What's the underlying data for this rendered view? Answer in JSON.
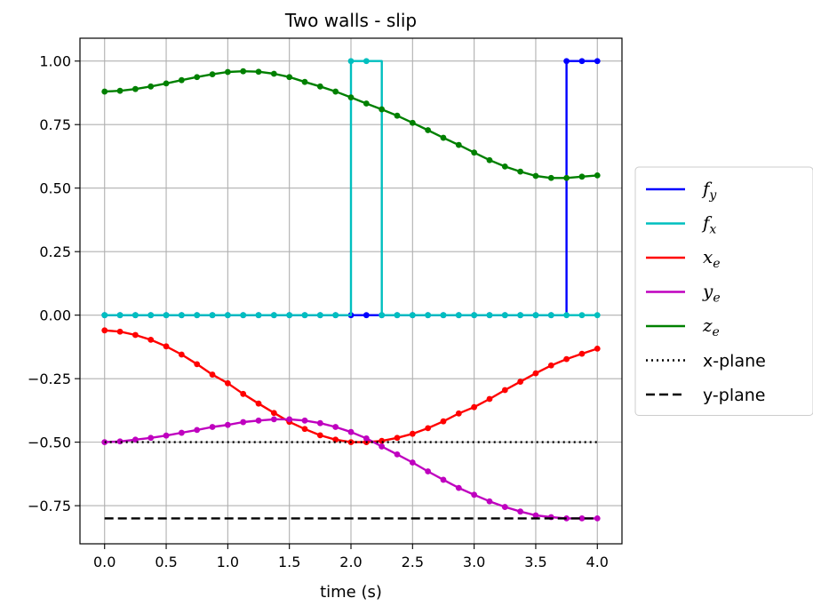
{
  "chart_data": {
    "type": "line",
    "title": "Two walls - slip",
    "xlabel": "time (s)",
    "ylabel": "",
    "xlim": [
      -0.2,
      4.2
    ],
    "ylim": [
      -0.9,
      1.09
    ],
    "xticks": [
      0.0,
      0.5,
      1.0,
      1.5,
      2.0,
      2.5,
      3.0,
      3.5,
      4.0
    ],
    "xtick_labels": [
      "0.0",
      "0.5",
      "1.0",
      "1.5",
      "2.0",
      "2.5",
      "3.0",
      "3.5",
      "4.0"
    ],
    "yticks": [
      -0.75,
      -0.5,
      -0.25,
      0.0,
      0.25,
      0.5,
      0.75,
      1.0
    ],
    "ytick_labels": [
      "−0.75",
      "−0.50",
      "−0.25",
      "0.00",
      "0.25",
      "0.50",
      "0.75",
      "1.00"
    ],
    "grid": true,
    "legend_position": "right-outside",
    "series": [
      {
        "name": "f_y",
        "label_main": "f",
        "label_sub": "y",
        "color": "#0000ff",
        "linestyle": "solid",
        "marker": "circle",
        "drawstyle": "steps-post",
        "x": [
          0.0,
          0.125,
          0.25,
          0.375,
          0.5,
          0.625,
          0.75,
          0.875,
          1.0,
          1.125,
          1.25,
          1.375,
          1.5,
          1.625,
          1.75,
          1.875,
          2.0,
          2.125,
          2.25,
          2.375,
          2.5,
          2.625,
          2.75,
          2.875,
          3.0,
          3.125,
          3.25,
          3.375,
          3.5,
          3.625,
          3.75,
          3.875,
          4.0
        ],
        "y": [
          0,
          0,
          0,
          0,
          0,
          0,
          0,
          0,
          0,
          0,
          0,
          0,
          0,
          0,
          0,
          0,
          0,
          0,
          0,
          0,
          0,
          0,
          0,
          0,
          0,
          0,
          0,
          0,
          0,
          0,
          1,
          1,
          1
        ]
      },
      {
        "name": "f_x",
        "label_main": "f",
        "label_sub": "x",
        "color": "#00bfbf",
        "linestyle": "solid",
        "marker": "circle",
        "drawstyle": "steps-post",
        "x": [
          0.0,
          0.125,
          0.25,
          0.375,
          0.5,
          0.625,
          0.75,
          0.875,
          1.0,
          1.125,
          1.25,
          1.375,
          1.5,
          1.625,
          1.75,
          1.875,
          2.0,
          2.125,
          2.25,
          2.375,
          2.5,
          2.625,
          2.75,
          2.875,
          3.0,
          3.125,
          3.25,
          3.375,
          3.5,
          3.625,
          3.75,
          3.875,
          4.0
        ],
        "y": [
          0,
          0,
          0,
          0,
          0,
          0,
          0,
          0,
          0,
          0,
          0,
          0,
          0,
          0,
          0,
          0,
          1,
          1,
          0,
          0,
          0,
          0,
          0,
          0,
          0,
          0,
          0,
          0,
          0,
          0,
          0,
          0,
          0
        ]
      },
      {
        "name": "x_e",
        "label_main": "x",
        "label_sub": "e",
        "color": "#ff0000",
        "linestyle": "solid",
        "marker": "circle",
        "drawstyle": "default",
        "x": [
          0.0,
          0.125,
          0.25,
          0.375,
          0.5,
          0.625,
          0.75,
          0.875,
          1.0,
          1.125,
          1.25,
          1.375,
          1.5,
          1.625,
          1.75,
          1.875,
          2.0,
          2.125,
          2.25,
          2.375,
          2.5,
          2.625,
          2.75,
          2.875,
          3.0,
          3.125,
          3.25,
          3.375,
          3.5,
          3.625,
          3.75,
          3.875,
          4.0
        ],
        "y": [
          -0.06,
          -0.065,
          -0.078,
          -0.097,
          -0.123,
          -0.155,
          -0.193,
          -0.234,
          -0.268,
          -0.31,
          -0.348,
          -0.385,
          -0.42,
          -0.448,
          -0.473,
          -0.49,
          -0.5,
          -0.5,
          -0.495,
          -0.483,
          -0.467,
          -0.445,
          -0.418,
          -0.387,
          -0.362,
          -0.33,
          -0.295,
          -0.262,
          -0.229,
          -0.198,
          -0.173,
          -0.152,
          -0.132
        ]
      },
      {
        "name": "y_e",
        "label_main": "y",
        "label_sub": "e",
        "color": "#bf00bf",
        "linestyle": "solid",
        "marker": "circle",
        "drawstyle": "default",
        "x": [
          0.0,
          0.125,
          0.25,
          0.375,
          0.5,
          0.625,
          0.75,
          0.875,
          1.0,
          1.125,
          1.25,
          1.375,
          1.5,
          1.625,
          1.75,
          1.875,
          2.0,
          2.125,
          2.25,
          2.375,
          2.5,
          2.625,
          2.75,
          2.875,
          3.0,
          3.125,
          3.25,
          3.375,
          3.5,
          3.625,
          3.75,
          3.875,
          4.0
        ],
        "y": [
          -0.5,
          -0.497,
          -0.49,
          -0.483,
          -0.474,
          -0.463,
          -0.452,
          -0.44,
          -0.432,
          -0.421,
          -0.415,
          -0.41,
          -0.41,
          -0.415,
          -0.425,
          -0.44,
          -0.46,
          -0.485,
          -0.517,
          -0.548,
          -0.58,
          -0.615,
          -0.648,
          -0.68,
          -0.707,
          -0.733,
          -0.755,
          -0.773,
          -0.788,
          -0.795,
          -0.8,
          -0.8,
          -0.8
        ]
      },
      {
        "name": "z_e",
        "label_main": "z",
        "label_sub": "e",
        "color": "#008000",
        "linestyle": "solid",
        "marker": "circle",
        "drawstyle": "default",
        "x": [
          0.0,
          0.125,
          0.25,
          0.375,
          0.5,
          0.625,
          0.75,
          0.875,
          1.0,
          1.125,
          1.25,
          1.375,
          1.5,
          1.625,
          1.75,
          1.875,
          2.0,
          2.125,
          2.25,
          2.375,
          2.5,
          2.625,
          2.75,
          2.875,
          3.0,
          3.125,
          3.25,
          3.375,
          3.5,
          3.625,
          3.75,
          3.875,
          4.0
        ],
        "y": [
          0.88,
          0.883,
          0.89,
          0.9,
          0.912,
          0.925,
          0.937,
          0.948,
          0.957,
          0.96,
          0.958,
          0.95,
          0.937,
          0.918,
          0.9,
          0.88,
          0.857,
          0.833,
          0.81,
          0.785,
          0.757,
          0.728,
          0.698,
          0.67,
          0.64,
          0.61,
          0.585,
          0.565,
          0.548,
          0.54,
          0.54,
          0.545,
          0.55
        ]
      },
      {
        "name": "x-plane",
        "label_main": "x-plane",
        "label_sub": "",
        "color": "#000000",
        "linestyle": "dotted",
        "marker": "none",
        "drawstyle": "default",
        "x": [
          0.0,
          4.0
        ],
        "y": [
          -0.5,
          -0.5
        ]
      },
      {
        "name": "y-plane",
        "label_main": "y-plane",
        "label_sub": "",
        "color": "#000000",
        "linestyle": "dashed",
        "marker": "none",
        "drawstyle": "default",
        "x": [
          0.0,
          4.0
        ],
        "y": [
          -0.8,
          -0.8
        ]
      }
    ]
  }
}
